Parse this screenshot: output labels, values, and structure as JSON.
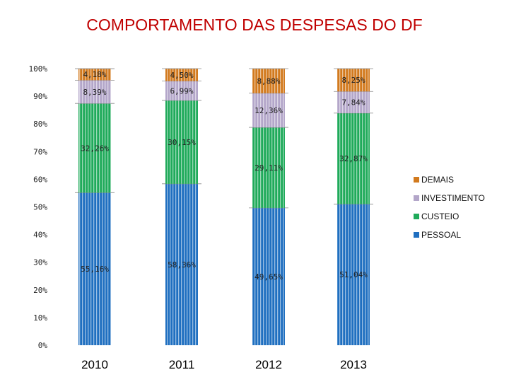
{
  "chart_data": {
    "type": "bar",
    "stacked": true,
    "title": "COMPORTAMENTO DAS DESPESAS DO DF",
    "categories": [
      "2010",
      "2011",
      "2012",
      "2013"
    ],
    "series": [
      {
        "name": "PESSOAL",
        "color": "#1f6fc0",
        "values": [
          55.16,
          58.36,
          49.65,
          51.04
        ],
        "labels": [
          "55,16%",
          "58,36%",
          "49,65%",
          "51,04%"
        ]
      },
      {
        "name": "CUSTEIO",
        "color": "#1faa5a",
        "values": [
          32.26,
          30.15,
          29.11,
          32.87
        ],
        "labels": [
          "32,26%",
          "30,15%",
          "29,11%",
          "32,87%"
        ]
      },
      {
        "name": "INVESTIMENTO",
        "color": "#b3a6c9",
        "values": [
          8.39,
          6.99,
          12.36,
          7.84
        ],
        "labels": [
          "8,39%",
          "6,99%",
          "12,36%",
          "7,84%"
        ]
      },
      {
        "name": "DEMAIS",
        "color": "#d27a1e",
        "values": [
          4.18,
          4.5,
          8.88,
          8.25
        ],
        "labels": [
          "4,18%",
          "4,50%",
          "8,88%",
          "8,25%"
        ]
      }
    ],
    "yticks": [
      "0%",
      "10%",
      "20%",
      "30%",
      "40%",
      "50%",
      "60%",
      "70%",
      "80%",
      "90%",
      "100%"
    ],
    "ylim": [
      0,
      100
    ],
    "legend_position": "right",
    "legend_order": [
      "DEMAIS",
      "INVESTIMENTO",
      "CUSTEIO",
      "PESSOAL"
    ]
  }
}
